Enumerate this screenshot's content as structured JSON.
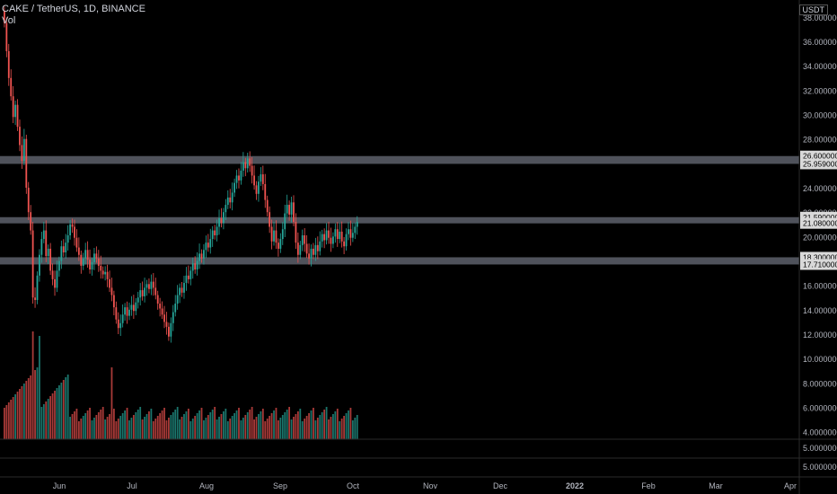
{
  "header": {
    "symbol_line": "CAKE / TetherUS, 1D, BINANCE",
    "volume_label": "Vol",
    "currency_badge": "USDT"
  },
  "chart_data": {
    "type": "candlestick",
    "title": "CAKE / TetherUS, 1D, BINANCE",
    "y_ticks": [
      "38.00000000",
      "36.00000000",
      "34.00000000",
      "32.00000000",
      "30.00000000",
      "28.00000000",
      "24.00000000",
      "22.00000000",
      "20.00000000",
      "16.00000000",
      "14.00000000",
      "12.00000000",
      "10.00000000",
      "8.00000000",
      "6.00000000",
      "4.00000000"
    ],
    "sub_ticks": [
      "5.00000000",
      "5.00000000"
    ],
    "x_ticks": [
      "Jun",
      "Jul",
      "Aug",
      "Sep",
      "Oct",
      "Nov",
      "Dec",
      "2022",
      "Feb",
      "Mar",
      "Apr"
    ],
    "zones": [
      {
        "high": 26.6,
        "low": 25.959,
        "labels": [
          "26.60000000",
          "25.95900000"
        ]
      },
      {
        "high": 21.59,
        "low": 21.08,
        "labels": [
          "21.59000000",
          "21.08000000"
        ]
      },
      {
        "high": 18.3,
        "low": 17.71,
        "labels": [
          "18.30000000",
          "17.71000000"
        ]
      }
    ],
    "ylim": [
      4,
      39
    ],
    "closes": [
      37.5,
      35.2,
      33.0,
      31.5,
      29.8,
      30.8,
      29.0,
      27.5,
      26.2,
      28.0,
      24.0,
      22.0,
      20.5,
      15.0,
      14.8,
      16.8,
      18.5,
      19.8,
      20.5,
      18.4,
      19.0,
      17.2,
      16.5,
      15.8,
      17.2,
      18.0,
      19.2,
      18.7,
      19.5,
      20.1,
      21.0,
      20.8,
      19.9,
      19.1,
      18.5,
      17.6,
      18.2,
      18.9,
      18.1,
      17.3,
      17.9,
      18.6,
      18.2,
      17.6,
      17.2,
      16.9,
      17.1,
      16.5,
      15.8,
      15.2,
      14.2,
      13.2,
      12.5,
      12.9,
      13.6,
      14.2,
      13.5,
      14.0,
      14.4,
      13.9,
      14.6,
      15.0,
      15.6,
      15.1,
      15.8,
      16.1,
      15.7,
      16.3,
      15.8,
      15.2,
      14.5,
      14.1,
      13.6,
      13.0,
      12.6,
      11.8,
      12.9,
      13.8,
      14.5,
      15.2,
      15.8,
      15.4,
      16.2,
      16.8,
      16.5,
      17.2,
      17.8,
      17.3,
      18.0,
      18.6,
      18.2,
      18.9,
      19.5,
      19.1,
      19.8,
      20.5,
      20.1,
      20.8,
      21.5,
      21.1,
      22.0,
      22.6,
      23.2,
      22.8,
      23.6,
      24.4,
      25.0,
      24.6,
      25.4,
      26.1,
      25.6,
      26.4,
      25.8,
      25.0,
      24.2,
      23.5,
      24.5,
      25.1,
      24.3,
      23.0,
      22.0,
      20.8,
      19.6,
      20.5,
      19.5,
      19.0,
      19.8,
      20.6,
      21.9,
      22.6,
      21.8,
      22.8,
      21.2,
      19.5,
      18.5,
      19.3,
      20.1,
      19.4,
      18.6,
      18.2,
      19.0,
      18.5,
      19.3,
      18.8,
      19.6,
      20.2,
      19.7,
      20.5,
      19.9,
      19.4,
      20.0,
      20.6,
      19.8,
      20.4,
      19.6,
      19.2,
      20.2,
      20.6,
      19.9,
      20.3,
      20.8,
      21.2
    ]
  }
}
